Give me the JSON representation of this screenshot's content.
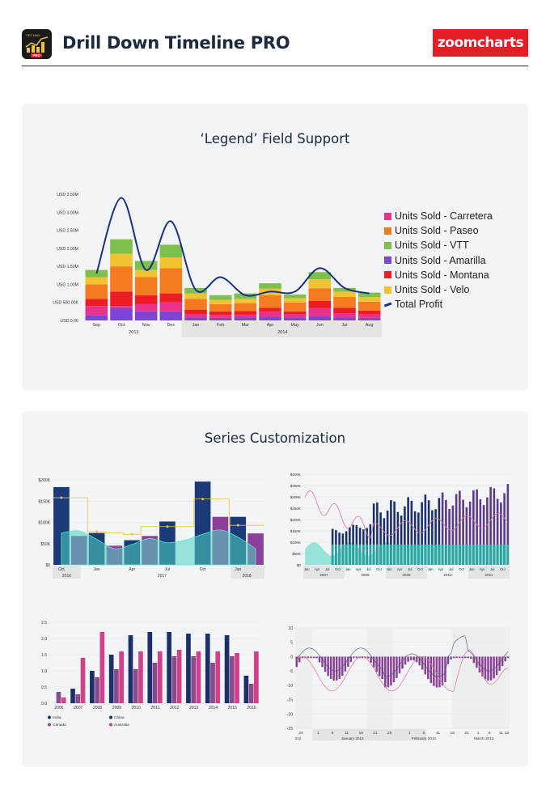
{
  "header": {
    "title": "Drill Down Timeline PRO",
    "logo": "zoomcharts",
    "icon": "bar-chart-icon",
    "icon_badge": "PRO",
    "icon_tags": "YES  MAX"
  },
  "colors": {
    "carretera": "#e8328e",
    "paseo": "#f47b20",
    "vtt": "#7dc04b",
    "amarilla": "#7e44d8",
    "montana": "#ee1c25",
    "velo": "#f1c232",
    "profit": "#1a2f86",
    "brand": "#e31e24"
  },
  "card1": {
    "title": "‘Legend’ Field Support",
    "legend": [
      {
        "label": "Units Sold - Carretera",
        "color": "#e8328e"
      },
      {
        "label": "Units Sold - Paseo",
        "color": "#f47b20"
      },
      {
        "label": "Units Sold - VTT",
        "color": "#7dc04b"
      },
      {
        "label": "Units Sold - Amarilla",
        "color": "#7e44d8"
      },
      {
        "label": "Units Sold - Montana",
        "color": "#ee1c25"
      },
      {
        "label": "Units Sold - Velo",
        "color": "#f1c232"
      },
      {
        "label": "Total Profit",
        "color": "#1a2f86",
        "line": true
      }
    ]
  },
  "chart_data": [
    {
      "type": "bar",
      "stacked": true,
      "title": "",
      "ylim": [
        0,
        3.5
      ],
      "y_unit": "USD M",
      "yticks": [
        "USD 0.00",
        "USD 500.00K",
        "USD 1.00M",
        "USD 1.50M",
        "USD 2.00M",
        "USD 2.50M",
        "USD 3.00M",
        "USD 3.50M"
      ],
      "categories": [
        "Sep",
        "Oct",
        "Nov",
        "Dec",
        "Jan",
        "Feb",
        "Mar",
        "Apr",
        "May",
        "Jun",
        "Jul",
        "Aug"
      ],
      "groups": [
        {
          "label": "2013",
          "from": 0,
          "to": 3
        },
        {
          "label": "2014",
          "from": 4,
          "to": 11
        }
      ],
      "series": [
        {
          "name": "Units Sold - Amarilla",
          "values": [
            0.15,
            0.35,
            0.25,
            0.25,
            0.08,
            0.07,
            0.08,
            0.1,
            0.08,
            0.12,
            0.08,
            0.07
          ]
        },
        {
          "name": "Units Sold - Carretera",
          "values": [
            0.25,
            0.05,
            0.2,
            0.25,
            0.1,
            0.08,
            0.08,
            0.15,
            0.1,
            0.22,
            0.12,
            0.1
          ]
        },
        {
          "name": "Units Sold - Montana",
          "values": [
            0.2,
            0.4,
            0.25,
            0.25,
            0.12,
            0.1,
            0.1,
            0.1,
            0.07,
            0.2,
            0.15,
            0.1
          ]
        },
        {
          "name": "Units Sold - Paseo",
          "values": [
            0.4,
            0.7,
            0.5,
            0.7,
            0.3,
            0.2,
            0.22,
            0.35,
            0.25,
            0.35,
            0.3,
            0.25
          ]
        },
        {
          "name": "Units Sold - Velo",
          "values": [
            0.2,
            0.35,
            0.2,
            0.3,
            0.15,
            0.12,
            0.12,
            0.18,
            0.12,
            0.25,
            0.15,
            0.13
          ]
        },
        {
          "name": "Units Sold - VTT",
          "values": [
            0.2,
            0.4,
            0.25,
            0.35,
            0.15,
            0.13,
            0.15,
            0.15,
            0.1,
            0.2,
            0.1,
            0.12
          ]
        }
      ],
      "line": {
        "name": "Total Profit",
        "values": [
          1.3,
          3.4,
          1.4,
          2.75,
          0.85,
          1.2,
          0.7,
          0.8,
          0.8,
          1.45,
          0.9,
          0.75
        ]
      }
    },
    {
      "type": "bar",
      "title": "",
      "ylim": [
        0,
        200
      ],
      "yticks": [
        "$0",
        "$50K",
        "$100K",
        "$150K",
        "$200K"
      ],
      "xticks": [
        "Oct",
        "Jan",
        "Apr",
        "Jul",
        "Oct",
        "Jan"
      ],
      "groups": [
        "2016",
        "2017",
        "2018"
      ],
      "series": [
        {
          "name": "",
          "color": "#1b3a78",
          "values": [
            183,
            null,
            75,
            null,
            58,
            null,
            102,
            null,
            196,
            null,
            113,
            null
          ]
        },
        {
          "name": "",
          "color": "#8a4197",
          "values": [
            null,
            68,
            null,
            45,
            null,
            68,
            null,
            null,
            null,
            113,
            null,
            74
          ]
        }
      ],
      "area": [
        75,
        80,
        60,
        38,
        48,
        62,
        52,
        58,
        72,
        82,
        65,
        38
      ],
      "profit_line": [
        158,
        158,
        78,
        75,
        72,
        90,
        90,
        90,
        155,
        155,
        93,
        93
      ]
    },
    {
      "type": "bar",
      "title": "",
      "ylim": [
        0,
        400
      ],
      "yticks": [
        "$0",
        "$50K",
        "$100K",
        "$150K",
        "$200K",
        "$250K",
        "$300K",
        "$350K",
        "$400K"
      ],
      "years": [
        "2007",
        "2008",
        "2009",
        "2010",
        "2011"
      ]
    },
    {
      "type": "bar",
      "title": "",
      "ylim": [
        0,
        2.5
      ],
      "yticks": [
        "0.0",
        "0.5",
        "1.0",
        "1.5",
        "2.0",
        "2.5"
      ],
      "categories": [
        "2006",
        "2007",
        "2008",
        "2009",
        "2010",
        "2011",
        "2012",
        "2013",
        "2014",
        "2015",
        "2016"
      ],
      "series": [
        {
          "name": "India",
          "color": "#1b2f6b",
          "values": [
            null,
            0.45,
            1.0,
            1.5,
            2.1,
            2.2,
            2.2,
            2.15,
            2.15,
            2.1,
            0.85
          ]
        },
        {
          "name": "China",
          "color": "#1b2f6b",
          "values": [
            null,
            0.45,
            1.0,
            1.5,
            2.1,
            2.2,
            2.2,
            2.15,
            2.15,
            2.1,
            0.85
          ]
        },
        {
          "name": "Canada",
          "color": "#8a4a8e",
          "values": [
            0.35,
            0.28,
            0.8,
            1.05,
            1.05,
            1.25,
            1.45,
            1.45,
            1.25,
            1.45,
            0.6
          ]
        },
        {
          "name": "Australia",
          "color": "#d43f8a",
          "values": [
            0.18,
            1.4,
            2.2,
            1.6,
            1.6,
            1.6,
            1.65,
            1.6,
            1.6,
            1.55,
            1.6
          ]
        }
      ],
      "legend": [
        "India",
        "China",
        "Canada",
        "Australia"
      ]
    },
    {
      "type": "bar",
      "title": "",
      "ylim": [
        -25,
        10
      ],
      "yticks": [
        "-25",
        "-20",
        "-15",
        "-10",
        "-5",
        "0",
        "5",
        "10"
      ],
      "xticks": [
        "24",
        "1",
        "6",
        "11",
        "16",
        "21",
        "26",
        "1",
        "6",
        "11",
        "16",
        "21",
        "1",
        "6",
        "11",
        "16"
      ],
      "months": [
        "212",
        "January 2013",
        "February 2013",
        "March 2013"
      ]
    }
  ],
  "card2": {
    "title": "Series Customization"
  }
}
